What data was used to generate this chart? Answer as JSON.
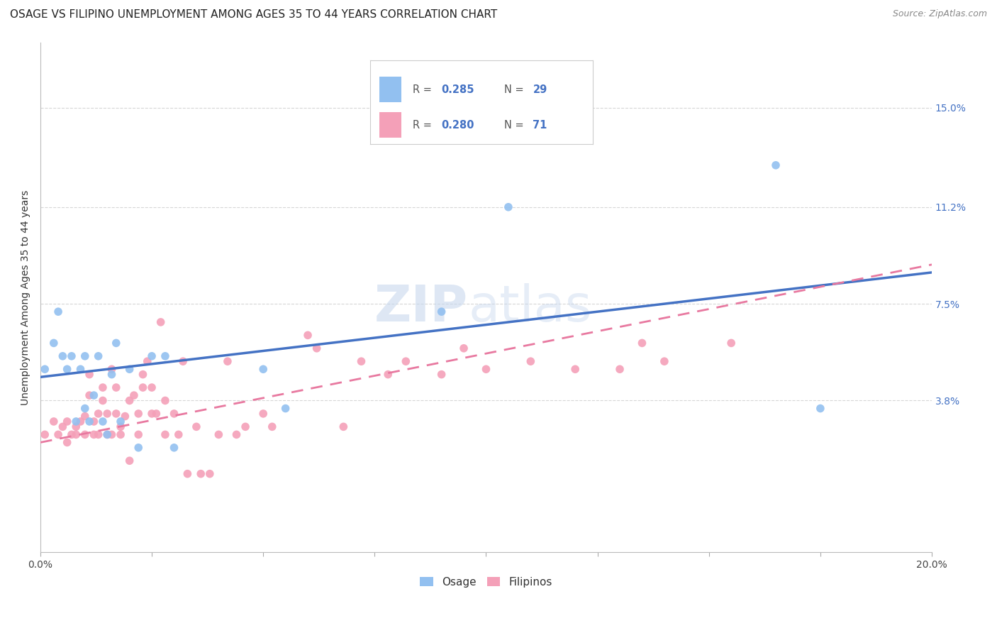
{
  "title": "OSAGE VS FILIPINO UNEMPLOYMENT AMONG AGES 35 TO 44 YEARS CORRELATION CHART",
  "source": "Source: ZipAtlas.com",
  "ylabel": "Unemployment Among Ages 35 to 44 years",
  "xlim": [
    0.0,
    0.2
  ],
  "ylim": [
    -0.02,
    0.175
  ],
  "ytick_labels_right": [
    "15.0%",
    "11.2%",
    "7.5%",
    "3.8%"
  ],
  "ytick_values_right": [
    0.15,
    0.112,
    0.075,
    0.038
  ],
  "osage_color": "#92c0f0",
  "filipino_color": "#f4a0b8",
  "osage_line_color": "#4472c4",
  "filipino_line_color": "#e879a0",
  "background_color": "#ffffff",
  "watermark_zip": "ZIP",
  "watermark_atlas": "atlas",
  "osage_scatter_x": [
    0.001,
    0.003,
    0.004,
    0.005,
    0.006,
    0.007,
    0.008,
    0.009,
    0.01,
    0.01,
    0.011,
    0.012,
    0.013,
    0.014,
    0.015,
    0.016,
    0.017,
    0.018,
    0.02,
    0.022,
    0.025,
    0.028,
    0.03,
    0.05,
    0.055,
    0.09,
    0.105,
    0.165,
    0.175
  ],
  "osage_scatter_y": [
    0.05,
    0.06,
    0.072,
    0.055,
    0.05,
    0.055,
    0.03,
    0.05,
    0.055,
    0.035,
    0.03,
    0.04,
    0.055,
    0.03,
    0.025,
    0.048,
    0.06,
    0.03,
    0.05,
    0.02,
    0.055,
    0.055,
    0.02,
    0.05,
    0.035,
    0.072,
    0.112,
    0.128,
    0.035
  ],
  "filipino_scatter_x": [
    0.001,
    0.003,
    0.004,
    0.005,
    0.006,
    0.006,
    0.007,
    0.008,
    0.008,
    0.009,
    0.01,
    0.01,
    0.011,
    0.011,
    0.012,
    0.012,
    0.013,
    0.013,
    0.014,
    0.014,
    0.015,
    0.015,
    0.016,
    0.016,
    0.017,
    0.017,
    0.018,
    0.018,
    0.019,
    0.02,
    0.02,
    0.021,
    0.022,
    0.022,
    0.023,
    0.023,
    0.024,
    0.025,
    0.025,
    0.026,
    0.027,
    0.028,
    0.028,
    0.03,
    0.031,
    0.032,
    0.033,
    0.035,
    0.036,
    0.038,
    0.04,
    0.042,
    0.044,
    0.046,
    0.05,
    0.052,
    0.06,
    0.062,
    0.068,
    0.072,
    0.078,
    0.082,
    0.09,
    0.095,
    0.1,
    0.11,
    0.12,
    0.13,
    0.135,
    0.14,
    0.155
  ],
  "filipino_scatter_y": [
    0.025,
    0.03,
    0.025,
    0.028,
    0.022,
    0.03,
    0.025,
    0.028,
    0.025,
    0.03,
    0.025,
    0.032,
    0.048,
    0.04,
    0.025,
    0.03,
    0.033,
    0.025,
    0.043,
    0.038,
    0.033,
    0.025,
    0.025,
    0.05,
    0.033,
    0.043,
    0.025,
    0.028,
    0.032,
    0.015,
    0.038,
    0.04,
    0.025,
    0.033,
    0.048,
    0.043,
    0.053,
    0.043,
    0.033,
    0.033,
    0.068,
    0.025,
    0.038,
    0.033,
    0.025,
    0.053,
    0.01,
    0.028,
    0.01,
    0.01,
    0.025,
    0.053,
    0.025,
    0.028,
    0.033,
    0.028,
    0.063,
    0.058,
    0.028,
    0.053,
    0.048,
    0.053,
    0.048,
    0.058,
    0.05,
    0.053,
    0.05,
    0.05,
    0.06,
    0.053,
    0.06
  ],
  "osage_line_x": [
    0.0,
    0.2
  ],
  "osage_line_y": [
    0.047,
    0.087
  ],
  "filipino_line_x": [
    0.0,
    0.2
  ],
  "filipino_line_y": [
    0.022,
    0.09
  ],
  "grid_color": "#cccccc",
  "title_fontsize": 11,
  "axis_label_fontsize": 10,
  "tick_fontsize": 10,
  "source_fontsize": 9,
  "marker_size": 70,
  "legend_r_osage": "0.285",
  "legend_n_osage": "29",
  "legend_r_filipino": "0.280",
  "legend_n_filipino": "71"
}
